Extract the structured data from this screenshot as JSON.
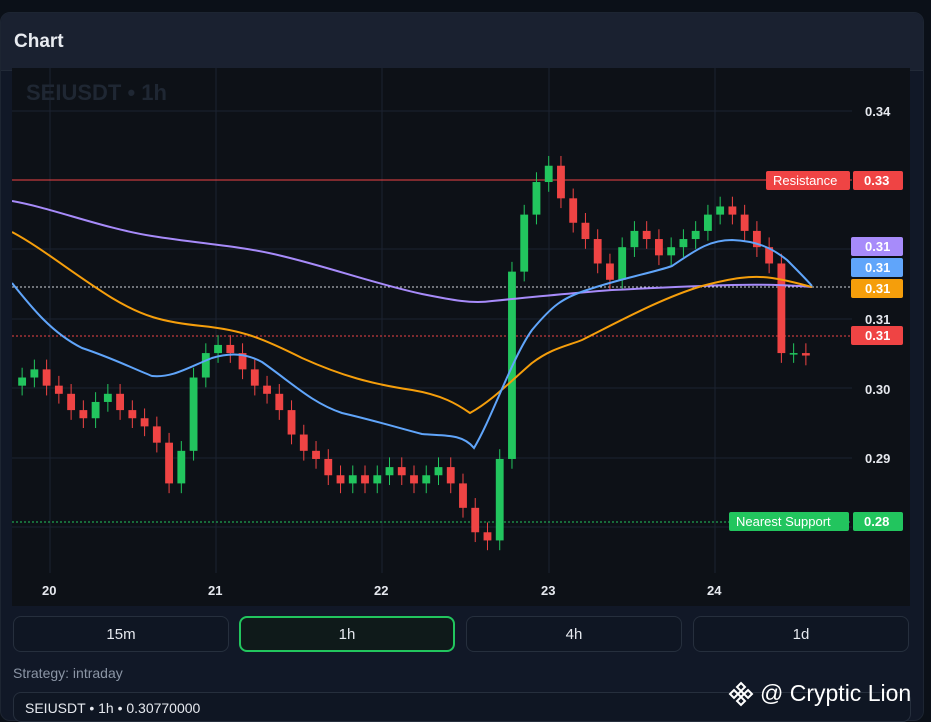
{
  "panel": {
    "title": "Chart"
  },
  "chart": {
    "symbol_watermark": "SEIUSDT • 1h",
    "price_ticks": [
      "0.34",
      "0.31",
      "0.30",
      "0.29"
    ],
    "date_ticks": [
      "20",
      "21",
      "22",
      "23",
      "24"
    ],
    "labels": {
      "resistance": "Resistance",
      "resistance_value": "0.33",
      "support": "Nearest Support",
      "support_value": "0.28",
      "ma_purple": "0.31",
      "ma_blue": "0.31",
      "ma_orange": "0.31",
      "last_price": "0.31"
    },
    "colors": {
      "up": "#22c55e",
      "down": "#ef4444",
      "ma_purple": "#a78bfa",
      "ma_blue": "#60a5fa",
      "ma_orange": "#f59e0b",
      "resistance": "#ef4444",
      "support": "#22c55e"
    }
  },
  "chart_data": {
    "type": "candlestick",
    "interval": "1h",
    "x_axis_dates": [
      "20",
      "21",
      "22",
      "23",
      "24"
    ],
    "ylim": [
      0.281,
      0.343
    ],
    "resistance": 0.333,
    "support": 0.2815,
    "last_price": 0.3077,
    "candles_close_approx": [
      0.305,
      0.306,
      0.304,
      0.303,
      0.301,
      0.3,
      0.302,
      0.303,
      0.301,
      0.3,
      0.299,
      0.297,
      0.292,
      0.296,
      0.305,
      0.308,
      0.309,
      0.308,
      0.306,
      0.304,
      0.303,
      0.301,
      0.298,
      0.296,
      0.295,
      0.293,
      0.292,
      0.293,
      0.292,
      0.293,
      0.294,
      0.293,
      0.292,
      0.293,
      0.294,
      0.292,
      0.289,
      0.286,
      0.285,
      0.295,
      0.318,
      0.325,
      0.329,
      0.331,
      0.327,
      0.324,
      0.322,
      0.319,
      0.317,
      0.321,
      0.323,
      0.322,
      0.32,
      0.321,
      0.322,
      0.323,
      0.325,
      0.326,
      0.325,
      0.323,
      0.321,
      0.319,
      0.308,
      0.308,
      0.3077
    ]
  },
  "timeframes": [
    {
      "label": "15m",
      "active": false
    },
    {
      "label": "1h",
      "active": true
    },
    {
      "label": "4h",
      "active": false
    },
    {
      "label": "1d",
      "active": false
    }
  ],
  "strategy": "Strategy: intraday",
  "status": "SEIUSDT • 1h • 0.30770000",
  "brand": "@ Cryptic Lion"
}
